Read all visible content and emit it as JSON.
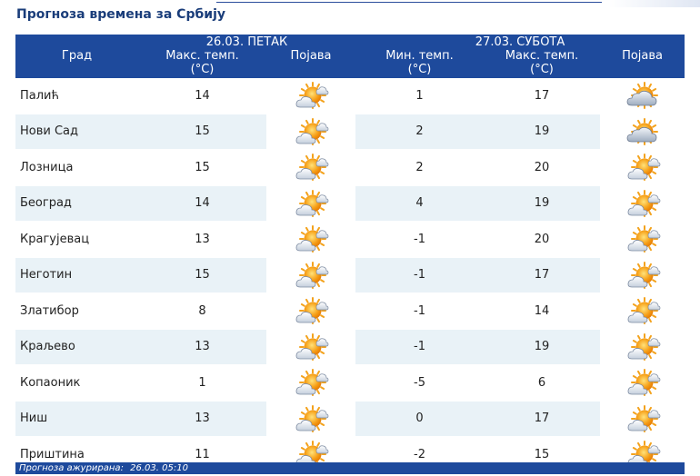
{
  "page_title": "Прогноза времена за Србију",
  "header": {
    "city": "Град",
    "day1": "26.03. ПЕТАК",
    "day2": "27.03. СУБОТА",
    "max_temp": "Макс. темп.",
    "min_temp": "Мин. темп.",
    "unit": "(°C)",
    "phenomenon": "Појава"
  },
  "rows": [
    {
      "city": "Палић",
      "d1_max": "14",
      "d1_icon": "sun-behind-cloud-icon",
      "d2_min": "1",
      "d2_max": "17",
      "d2_icon": "clouds-with-sun-icon"
    },
    {
      "city": "Нови Сад",
      "d1_max": "15",
      "d1_icon": "sun-behind-cloud-icon",
      "d2_min": "2",
      "d2_max": "19",
      "d2_icon": "clouds-with-sun-icon"
    },
    {
      "city": "Лозница",
      "d1_max": "15",
      "d1_icon": "sun-behind-cloud-icon",
      "d2_min": "2",
      "d2_max": "20",
      "d2_icon": "sun-behind-cloud-icon"
    },
    {
      "city": "Београд",
      "d1_max": "14",
      "d1_icon": "sun-behind-cloud-icon",
      "d2_min": "4",
      "d2_max": "19",
      "d2_icon": "sun-behind-cloud-icon"
    },
    {
      "city": "Крагујевац",
      "d1_max": "13",
      "d1_icon": "sun-behind-cloud-icon",
      "d2_min": "-1",
      "d2_max": "20",
      "d2_icon": "sun-behind-cloud-icon"
    },
    {
      "city": "Неготин",
      "d1_max": "15",
      "d1_icon": "sun-behind-cloud-icon",
      "d2_min": "-1",
      "d2_max": "17",
      "d2_icon": "sun-behind-cloud-icon"
    },
    {
      "city": "Златибор",
      "d1_max": "8",
      "d1_icon": "sun-behind-cloud-icon",
      "d2_min": "-1",
      "d2_max": "14",
      "d2_icon": "sun-behind-cloud-icon"
    },
    {
      "city": "Краљево",
      "d1_max": "13",
      "d1_icon": "sun-behind-cloud-icon",
      "d2_min": "-1",
      "d2_max": "19",
      "d2_icon": "sun-behind-cloud-icon"
    },
    {
      "city": "Копаоник",
      "d1_max": "1",
      "d1_icon": "sun-behind-cloud-icon",
      "d2_min": "-5",
      "d2_max": "6",
      "d2_icon": "sun-behind-cloud-icon"
    },
    {
      "city": "Ниш",
      "d1_max": "13",
      "d1_icon": "sun-behind-cloud-icon",
      "d2_min": "0",
      "d2_max": "17",
      "d2_icon": "sun-behind-cloud-icon"
    },
    {
      "city": "Приштина",
      "d1_max": "11",
      "d1_icon": "sun-behind-cloud-icon",
      "d2_min": "-2",
      "d2_max": "15",
      "d2_icon": "sun-behind-cloud-icon"
    }
  ],
  "footer": {
    "label": "Прогноза ажурирана:",
    "value": "26.03. 05:10"
  },
  "colors": {
    "header_bg": "#1e4a9c",
    "alt_row_bg": "#e9f2f7",
    "title": "#1a3d7a"
  }
}
